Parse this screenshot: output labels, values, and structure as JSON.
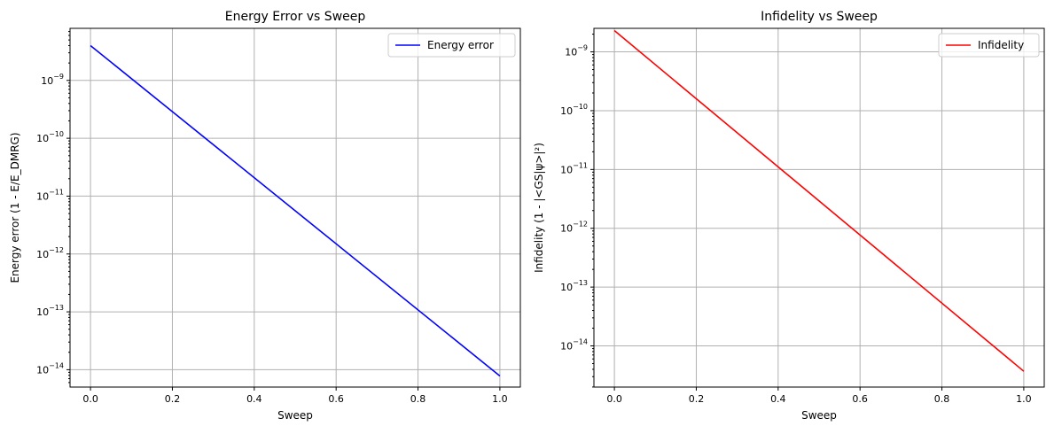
{
  "chart_data": [
    {
      "type": "line",
      "title": "Energy Error vs Sweep",
      "xlabel": "Sweep",
      "ylabel": "Energy error (1 - E/E_DMRG)",
      "yscale": "log",
      "xlim": [
        -0.05,
        1.05
      ],
      "ylim_log10": [
        -14.3,
        -8.1
      ],
      "xticks": [
        "0.0",
        "0.2",
        "0.4",
        "0.6",
        "0.8",
        "1.0"
      ],
      "yticks_exponents": [
        -14,
        -13,
        -12,
        -11,
        -10,
        -9
      ],
      "grid": true,
      "legend_position": "top-right",
      "series": [
        {
          "name": "Energy error",
          "color": "#0000ff",
          "x": [
            0.0,
            1.0
          ],
          "y": [
            4e-09,
            7.8e-15
          ]
        }
      ]
    },
    {
      "type": "line",
      "title": "Infidelity vs Sweep",
      "xlabel": "Sweep",
      "ylabel": "Infidelity (1 - |<GS|ψ>|²)",
      "yscale": "log",
      "xlim": [
        -0.05,
        1.05
      ],
      "ylim_log10": [
        -14.7,
        -8.6
      ],
      "xticks": [
        "0.0",
        "0.2",
        "0.4",
        "0.6",
        "0.8",
        "1.0"
      ],
      "yticks_exponents": [
        -14,
        -13,
        -12,
        -11,
        -10,
        -9
      ],
      "grid": true,
      "legend_position": "top-right",
      "series": [
        {
          "name": "Infidelity",
          "color": "#ff0000",
          "x": [
            0.0,
            1.0
          ],
          "y": [
            2.3e-09,
            3.7e-15
          ]
        }
      ]
    }
  ]
}
